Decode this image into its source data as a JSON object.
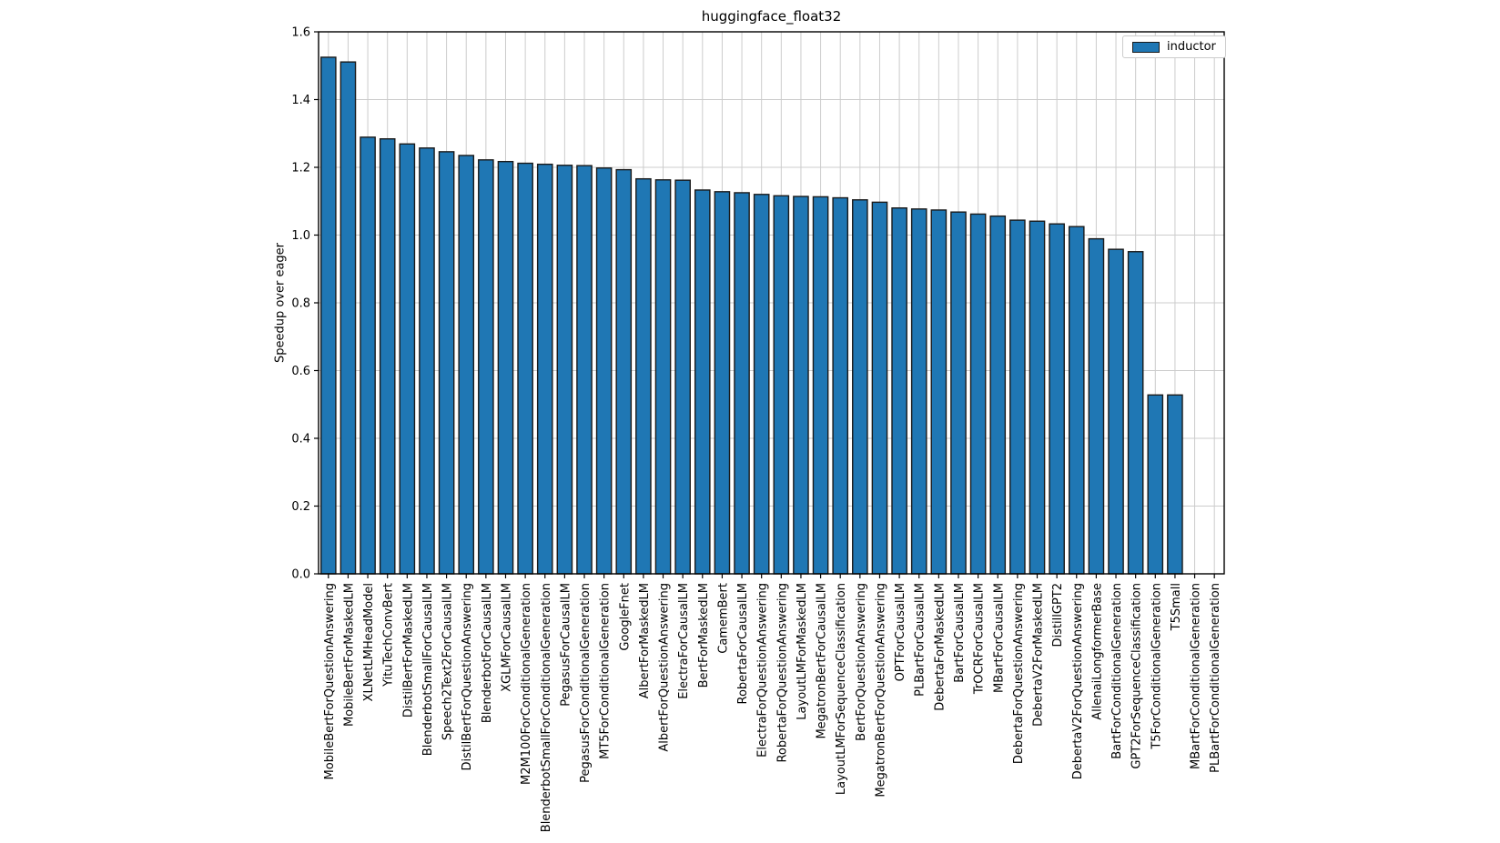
{
  "chart_data": {
    "type": "bar",
    "title": "huggingface_float32",
    "xlabel": "",
    "ylabel": "Speedup over eager",
    "ylim": [
      0.0,
      1.6
    ],
    "yticks": [
      0.0,
      0.2,
      0.4,
      0.6,
      0.8,
      1.0,
      1.2,
      1.4,
      1.6
    ],
    "grid": "both",
    "grid_color": "#cccccc",
    "axis_color": "#000000",
    "legend_position": "upper right",
    "categories": [
      "MobileBertForQuestionAnswering",
      "MobileBertForMaskedLM",
      "XLNetLMHeadModel",
      "YituTechConvBert",
      "DistilBertForMaskedLM",
      "BlenderbotSmallForCausalLM",
      "Speech2Text2ForCausalLM",
      "DistilBertForQuestionAnswering",
      "BlenderbotForCausalLM",
      "XGLMForCausalLM",
      "M2M100ForConditionalGeneration",
      "BlenderbotSmallForConditionalGeneration",
      "PegasusForCausalLM",
      "PegasusForConditionalGeneration",
      "MT5ForConditionalGeneration",
      "GoogleFnet",
      "AlbertForMaskedLM",
      "AlbertForQuestionAnswering",
      "ElectraForCausalLM",
      "BertForMaskedLM",
      "CamemBert",
      "RobertaForCausalLM",
      "ElectraForQuestionAnswering",
      "RobertaForQuestionAnswering",
      "LayoutLMForMaskedLM",
      "MegatronBertForCausalLM",
      "LayoutLMForSequenceClassification",
      "BertForQuestionAnswering",
      "MegatronBertForQuestionAnswering",
      "OPTForCausalLM",
      "PLBartForCausalLM",
      "DebertaForMaskedLM",
      "BartForCausalLM",
      "TrOCRForCausalLM",
      "MBartForCausalLM",
      "DebertaForQuestionAnswering",
      "DebertaV2ForMaskedLM",
      "DistillGPT2",
      "DebertaV2ForQuestionAnswering",
      "AllenaiLongformerBase",
      "BartForConditionalGeneration",
      "GPT2ForSequenceClassification",
      "T5ForConditionalGeneration",
      "T5Small",
      "MBartForConditionalGeneration",
      "PLBartForConditionalGeneration"
    ],
    "series": [
      {
        "name": "inductor",
        "color": "#1f77b4",
        "edge_color": "#1a1a1a",
        "values": [
          1.525,
          1.511,
          1.289,
          1.284,
          1.269,
          1.257,
          1.246,
          1.235,
          1.222,
          1.217,
          1.212,
          1.209,
          1.206,
          1.205,
          1.198,
          1.193,
          1.166,
          1.163,
          1.162,
          1.133,
          1.128,
          1.125,
          1.12,
          1.116,
          1.114,
          1.113,
          1.11,
          1.104,
          1.097,
          1.08,
          1.077,
          1.074,
          1.068,
          1.062,
          1.056,
          1.044,
          1.041,
          1.033,
          1.025,
          0.989,
          0.958,
          0.951,
          0.528,
          0.528,
          null,
          null
        ]
      }
    ]
  }
}
